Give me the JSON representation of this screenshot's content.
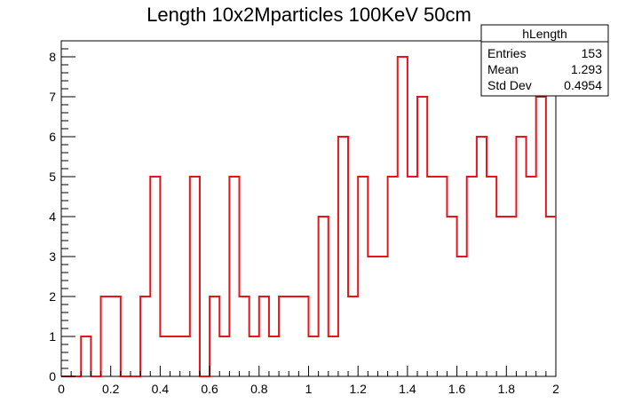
{
  "chart_data": {
    "type": "bar",
    "style": "step-histogram",
    "title": "Length 10x2Mparticles 100KeV 50cm",
    "xlabel": "",
    "ylabel": "",
    "xlim": [
      0,
      2
    ],
    "ylim": [
      0,
      8.4
    ],
    "x_ticks": [
      0,
      0.2,
      0.4,
      0.6,
      0.8,
      1,
      1.2,
      1.4,
      1.6,
      1.8,
      2
    ],
    "x_tick_labels": [
      "0",
      "0.2",
      "0.4",
      "0.6",
      "0.8",
      "1",
      "1.2",
      "1.4",
      "1.6",
      "1.8",
      "2"
    ],
    "y_ticks": [
      0,
      1,
      2,
      3,
      4,
      5,
      6,
      7,
      8
    ],
    "y_tick_labels": [
      "0",
      "1",
      "2",
      "3",
      "4",
      "5",
      "6",
      "7",
      "8"
    ],
    "bin_width": 0.04,
    "values": [
      0,
      0,
      1,
      0,
      2,
      2,
      0,
      0,
      2,
      5,
      1,
      1,
      1,
      5,
      0,
      2,
      1,
      5,
      2,
      1,
      2,
      1,
      2,
      2,
      2,
      1,
      4,
      1,
      6,
      2,
      5,
      3,
      3,
      5,
      8,
      5,
      7,
      5,
      5,
      4,
      3,
      5,
      6,
      5,
      4,
      4,
      6,
      5,
      7,
      4
    ],
    "line_color": "#e8141c",
    "grid": false,
    "stats_box": {
      "title": "hLength",
      "rows": [
        {
          "label": "Entries",
          "value": "153"
        },
        {
          "label": "Mean",
          "value": "1.293"
        },
        {
          "label": "Std Dev",
          "value": "0.4954"
        }
      ],
      "placement": "top-right"
    }
  }
}
